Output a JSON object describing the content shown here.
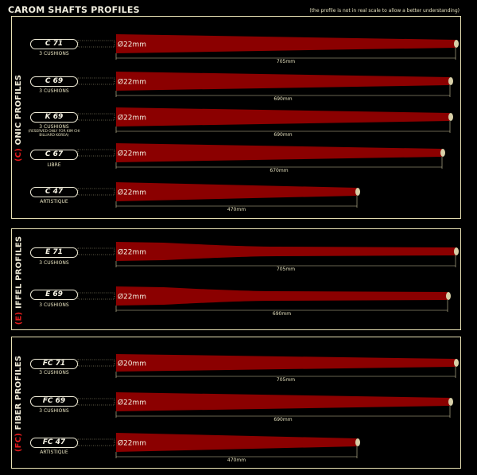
{
  "header": {
    "title": "CAROM SHAFTS PROFILES",
    "note": "(the profile is not in real scale to allow a better understanding)"
  },
  "groups": [
    {
      "label_paren": "(C)",
      "label_rest": " ONIC PROFILES",
      "shafts": [
        {
          "code": "C 71",
          "sub": "3 CUSHIONS",
          "diameter": "Ø22mm",
          "length": "705mm"
        },
        {
          "code": "C 69",
          "sub": "3 CUSHIONS",
          "diameter": "Ø22mm",
          "length": "690mm"
        },
        {
          "code": "K 69",
          "sub": "3 CUSHIONS",
          "sub2": "(RESERVED ONLY FOR KIM CHI BILLIARD KOREA)",
          "diameter": "Ø22mm",
          "length": "690mm"
        },
        {
          "code": "C 67",
          "sub": "LIBRE",
          "diameter": "Ø22mm",
          "length": "670mm"
        },
        {
          "code": "C 47",
          "sub": "ARTISTIQUE",
          "diameter": "Ø22mm",
          "length": "470mm"
        }
      ]
    },
    {
      "label_paren": "(E)",
      "label_rest": " IFFEL PROFILES",
      "shafts": [
        {
          "code": "E 71",
          "sub": "3 CUSHIONS",
          "diameter": "Ø22mm",
          "length": "705mm"
        },
        {
          "code": "E 69",
          "sub": "3 CUSHIONS",
          "diameter": "Ø22mm",
          "length": "690mm"
        }
      ]
    },
    {
      "label_paren": "(FC)",
      "label_rest": " FIBER PROFILES",
      "shafts": [
        {
          "code": "FC 71",
          "sub": "3 CUSHIONS",
          "diameter": "Ø20mm",
          "length": "705mm"
        },
        {
          "code": "FC 69",
          "sub": "3 CUSHIONS",
          "diameter": "Ø22mm",
          "length": "690mm"
        },
        {
          "code": "FC 47",
          "sub": "ARTISTIQUE",
          "diameter": "Ø22mm",
          "length": "470mm"
        }
      ]
    }
  ],
  "colors": {
    "shaft": "#8b0000",
    "tip": "#d8d0a8",
    "frame": "#e9e2b5",
    "accent": "#e21c1c"
  }
}
